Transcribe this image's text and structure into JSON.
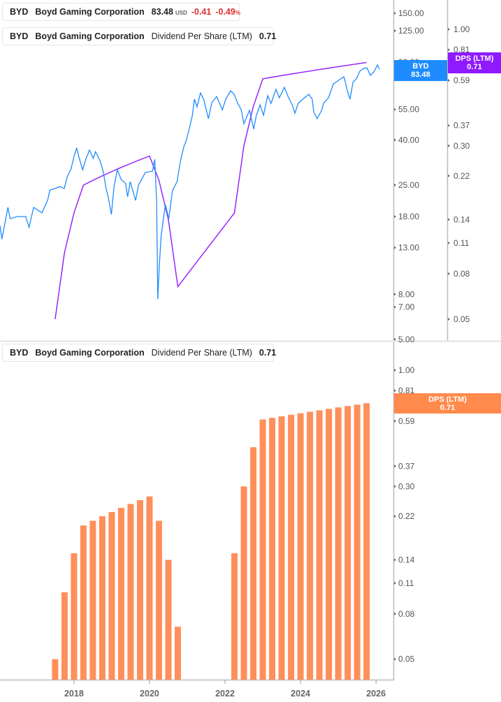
{
  "colors": {
    "price": "#1e8cff",
    "dps_line": "#8f1aff",
    "dps_bar": "#ff8f5a",
    "negative": "#e03030"
  },
  "legend_price": {
    "ticker": "BYD",
    "name": "Boyd Gaming Corporation",
    "price": "83.48",
    "currency": "USD",
    "change": "-0.41",
    "change_pct": "-0.49",
    "pct_sign": "%"
  },
  "legend_dps_top": {
    "ticker": "BYD",
    "name": "Boyd Gaming Corporation",
    "metric": "Dividend Per Share (LTM)",
    "value": "0.71"
  },
  "legend_dps_bottom": {
    "ticker": "BYD",
    "name": "Boyd Gaming Corporation",
    "metric": "Dividend Per Share (LTM)",
    "value": "0.71"
  },
  "tags": {
    "price": {
      "label": "BYD",
      "value": "83.48"
    },
    "dps_top": {
      "label": "DPS (LTM)",
      "value": "0.71"
    },
    "dps_bottom": {
      "label": "DPS (LTM)",
      "value": "0.71"
    }
  },
  "chart_data": [
    {
      "type": "line",
      "scale": "log",
      "xlim": [
        2016.04,
        2026.46
      ],
      "price_axis": {
        "ylim": [
          5,
          150
        ],
        "ticks": [
          "150.00",
          "125.00",
          "90.00",
          "55.00",
          "40.00",
          "25.00",
          "18.00",
          "13.00",
          "8.00",
          "7.00",
          "5.00"
        ]
      },
      "dps_axis": {
        "ylim": [
          0.045,
          1.2
        ],
        "ticks": [
          "1.00",
          "0.81",
          "0.59",
          "0.37",
          "0.30",
          "0.22",
          "0.14",
          "0.11",
          "0.08",
          "0.05"
        ]
      },
      "series": [
        {
          "name": "BYD",
          "x": [
            2016.04,
            2016.09,
            2016.25,
            2016.31,
            2016.5,
            2016.72,
            2016.81,
            2016.93,
            2017.15,
            2017.3,
            2017.36,
            2017.64,
            2017.74,
            2017.83,
            2017.92,
            2018.01,
            2018.07,
            2018.14,
            2018.23,
            2018.32,
            2018.41,
            2018.51,
            2018.57,
            2018.69,
            2018.78,
            2018.85,
            2018.91,
            2018.99,
            2019.06,
            2019.15,
            2019.25,
            2019.37,
            2019.42,
            2019.49,
            2019.63,
            2019.71,
            2019.89,
            2020.08,
            2020.14,
            2020.19,
            2020.22,
            2020.26,
            2020.31,
            2020.42,
            2020.51,
            2020.61,
            2020.73,
            2020.82,
            2020.91,
            2020.98,
            2021.07,
            2021.13,
            2021.19,
            2021.26,
            2021.35,
            2021.44,
            2021.56,
            2021.65,
            2021.78,
            2021.93,
            2022.02,
            2022.15,
            2022.24,
            2022.33,
            2022.43,
            2022.5,
            2022.65,
            2022.76,
            2022.83,
            2022.93,
            2023.02,
            2023.13,
            2023.22,
            2023.35,
            2023.44,
            2023.57,
            2023.67,
            2023.78,
            2023.85,
            2023.94,
            2024.06,
            2024.22,
            2024.31,
            2024.35,
            2024.44,
            2024.56,
            2024.61,
            2024.74,
            2024.87,
            2024.96,
            2025.06,
            2025.15,
            2025.2,
            2025.24,
            2025.31,
            2025.39,
            2025.48,
            2025.57,
            2025.67,
            2025.76,
            2025.85,
            2025.94,
            2026.04,
            2026.09
          ],
          "y": [
            16.4,
            14.2,
            19.8,
            17.6,
            18.0,
            18.0,
            16.1,
            19.8,
            18.7,
            21.3,
            23.7,
            24.6,
            24.1,
            27.5,
            29.5,
            34.2,
            36.7,
            33.0,
            29.3,
            33.0,
            36.0,
            33.0,
            35.4,
            32.2,
            28.5,
            24.1,
            21.9,
            18.4,
            24.6,
            29.3,
            26.5,
            25.4,
            22.1,
            25.9,
            21.3,
            25.0,
            28.5,
            28.9,
            32.7,
            20.8,
            7.6,
            10.8,
            14.8,
            20.4,
            17.6,
            23.6,
            25.9,
            32.2,
            37.3,
            40.1,
            46.4,
            51.1,
            61.2,
            56.5,
            65.3,
            60.8,
            49.9,
            59.0,
            63.0,
            54.8,
            61.2,
            66.8,
            64.4,
            59.0,
            54.8,
            47.4,
            54.5,
            44.8,
            51.8,
            57.7,
            51.8,
            63.5,
            58.6,
            67.8,
            62.1,
            69.3,
            63.0,
            57.7,
            52.9,
            58.6,
            61.2,
            64.4,
            61.2,
            53.7,
            49.9,
            54.5,
            58.6,
            62.1,
            71.8,
            73.5,
            75.7,
            77.3,
            71.8,
            66.8,
            61.2,
            73.0,
            75.7,
            81.9,
            84.4,
            84.9,
            78.4,
            81.3,
            87.5,
            83.48
          ]
        },
        {
          "name": "Dividend Per Share (LTM)",
          "axis": "dps"
        }
      ]
    },
    {
      "type": "bar",
      "scale": "log",
      "xlim": [
        2016.04,
        2026.46
      ],
      "ylim": [
        0.045,
        1.2
      ],
      "x_ticks": [
        "2018",
        "2020",
        "2022",
        "2024",
        "2026"
      ],
      "y_ticks": [
        "1.00",
        "0.81",
        "0.59",
        "0.37",
        "0.30",
        "0.22",
        "0.14",
        "0.11",
        "0.08",
        "0.05"
      ],
      "series": [
        {
          "name": "Dividend Per Share (LTM)",
          "x": [
            2017.5,
            2017.75,
            2018.0,
            2018.25,
            2018.5,
            2018.75,
            2019.0,
            2019.25,
            2019.5,
            2019.75,
            2020.0,
            2020.25,
            2020.5,
            2020.75,
            2022.25,
            2022.5,
            2022.75,
            2023.0,
            2023.25,
            2023.5,
            2023.75,
            2024.0,
            2024.25,
            2024.5,
            2024.75,
            2025.0,
            2025.25,
            2025.5,
            2025.75
          ],
          "values": [
            0.05,
            0.1,
            0.15,
            0.2,
            0.21,
            0.22,
            0.23,
            0.24,
            0.25,
            0.26,
            0.27,
            0.21,
            0.14,
            0.07,
            0.15,
            0.3,
            0.45,
            0.6,
            0.61,
            0.62,
            0.63,
            0.64,
            0.65,
            0.66,
            0.67,
            0.68,
            0.69,
            0.7,
            0.71
          ]
        }
      ]
    }
  ]
}
